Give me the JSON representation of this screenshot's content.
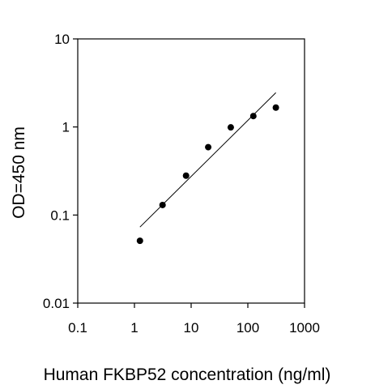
{
  "chart_data": {
    "type": "scatter",
    "title": "",
    "xlabel": "Human FKBP52 concentration (ng/ml)",
    "ylabel": "OD=450 nm",
    "x_scale": "log",
    "y_scale": "log",
    "xlim": [
      0.1,
      1000
    ],
    "ylim": [
      0.01,
      10
    ],
    "x_ticks": [
      {
        "value": 0.1,
        "label": "0.1"
      },
      {
        "value": 1,
        "label": "1"
      },
      {
        "value": 10,
        "label": "10"
      },
      {
        "value": 100,
        "label": "100"
      },
      {
        "value": 1000,
        "label": "1000"
      }
    ],
    "y_ticks": [
      {
        "value": 0.01,
        "label": "0.01"
      },
      {
        "value": 0.1,
        "label": "0.1"
      },
      {
        "value": 1,
        "label": "1"
      },
      {
        "value": 10,
        "label": "10"
      }
    ],
    "grid": false,
    "legend": "none",
    "series": [
      {
        "x": [
          1.25,
          3.13,
          8.13,
          20.0,
          50.0,
          125.0,
          312.0
        ],
        "y": [
          0.051,
          0.13,
          0.28,
          0.59,
          0.99,
          1.33,
          1.66
        ]
      }
    ],
    "trendline": {
      "x": [
        1.25,
        312.0
      ],
      "y": [
        0.073,
        2.45
      ]
    },
    "colors": {
      "marker": "#000000",
      "axis": "#000000",
      "trendline": "#000000"
    }
  }
}
